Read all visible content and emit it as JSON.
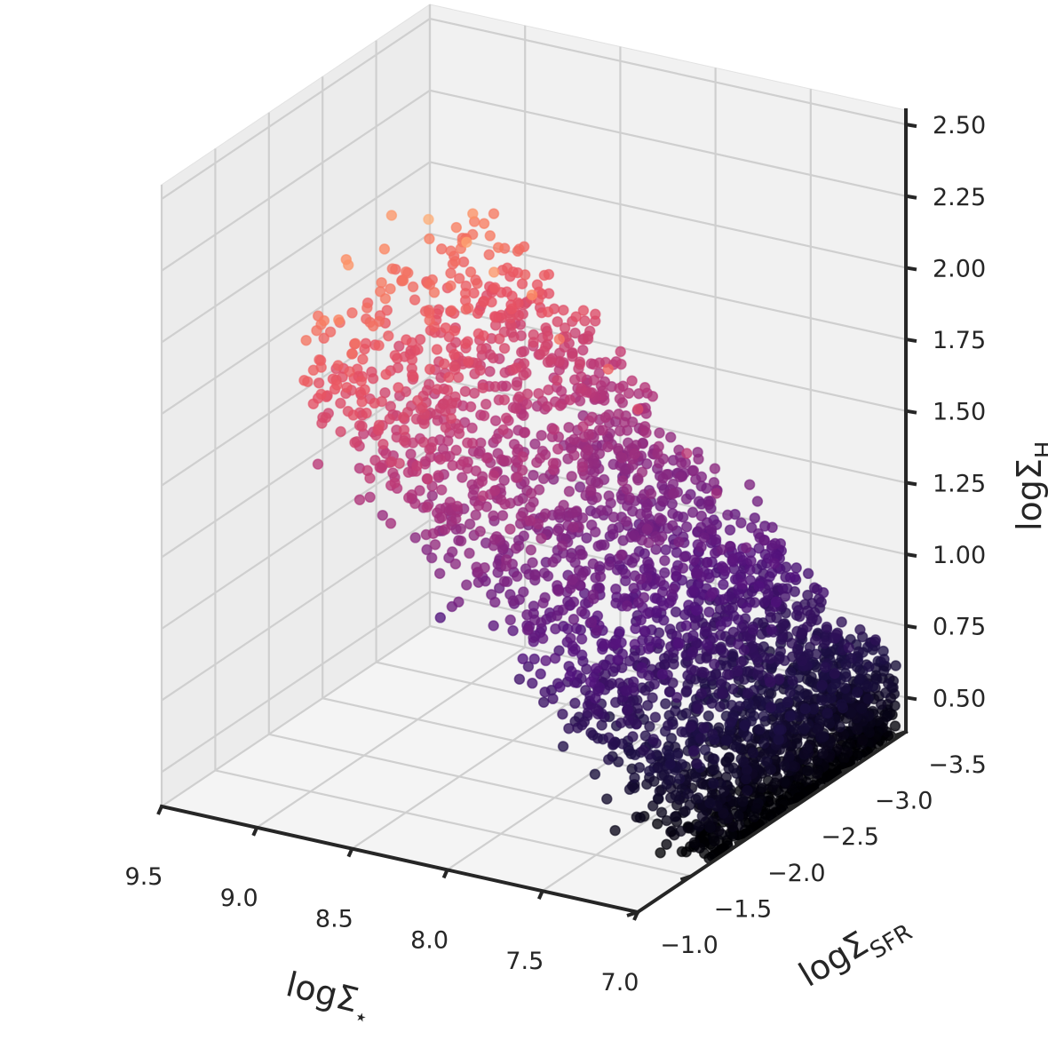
{
  "chart_data": {
    "type": "scatter",
    "projection": "3d",
    "colormap": "magma",
    "color_by": "z",
    "colormap_stops": [
      "#000004",
      "#1c1044",
      "#51127c",
      "#822681",
      "#b73779",
      "#e75263",
      "#fc8961",
      "#fec488",
      "#fcfdbf"
    ],
    "pane_color": "#f0f0f0",
    "grid": true,
    "axes": {
      "x": {
        "label": "logΣ",
        "label_sub": "⋆",
        "range": [
          7.0,
          9.5
        ],
        "ticks": [
          9.5,
          9.0,
          8.5,
          8.0,
          7.5,
          7.0
        ],
        "tick_labels": [
          "9.5",
          "9.0",
          "8.5",
          "8.0",
          "7.5",
          "7.0"
        ]
      },
      "y": {
        "label": "logΣ",
        "label_sub": "SFR",
        "range": [
          -3.5,
          -1.0
        ],
        "ticks": [
          -3.5,
          -3.0,
          -2.5,
          -2.0,
          -1.5,
          -1.0
        ],
        "tick_labels": [
          "−3.5",
          "−3.0",
          "−2.5",
          "−2.0",
          "−1.5",
          "−1.0"
        ]
      },
      "z": {
        "label": "logΣ",
        "label_sub": "H",
        "range": [
          0.38,
          2.55
        ],
        "ticks": [
          0.5,
          0.75,
          1.0,
          1.25,
          1.5,
          1.75,
          2.0,
          2.25,
          2.5
        ],
        "tick_labels": [
          "0.50",
          "0.75",
          "1.00",
          "1.25",
          "1.50",
          "1.75",
          "2.00",
          "2.25",
          "2.50"
        ]
      }
    },
    "series": [
      {
        "points_sample": [
          [
            9.4,
            -2.6,
            2.42
          ],
          [
            9.3,
            -2.5,
            2.43
          ],
          [
            9.1,
            -2.6,
            2.35
          ],
          [
            8.9,
            -2.7,
            2.3
          ],
          [
            9.0,
            -2.6,
            2.1
          ],
          [
            8.8,
            -2.6,
            2.05
          ],
          [
            8.6,
            -2.5,
            2.0
          ],
          [
            8.4,
            -2.5,
            1.95
          ],
          [
            8.2,
            -2.4,
            1.85
          ],
          [
            8.0,
            -2.5,
            1.75
          ],
          [
            7.9,
            -2.6,
            1.6
          ],
          [
            7.7,
            -2.7,
            1.45
          ],
          [
            7.6,
            -2.8,
            1.3
          ],
          [
            7.5,
            -2.9,
            1.1
          ],
          [
            7.4,
            -3.0,
            0.9
          ],
          [
            7.3,
            -3.1,
            0.7
          ],
          [
            7.2,
            -3.2,
            0.55
          ],
          [
            7.1,
            -3.3,
            0.45
          ],
          [
            7.5,
            -1.6,
            0.55
          ],
          [
            7.4,
            -1.5,
            0.48
          ],
          [
            8.6,
            -2.0,
            0.92
          ]
        ],
        "n_points": 3000,
        "x_center": 7.6,
        "y_center": -2.75,
        "z_center": 0.95,
        "z_min": 0.4,
        "z_max": 2.45
      }
    ]
  }
}
